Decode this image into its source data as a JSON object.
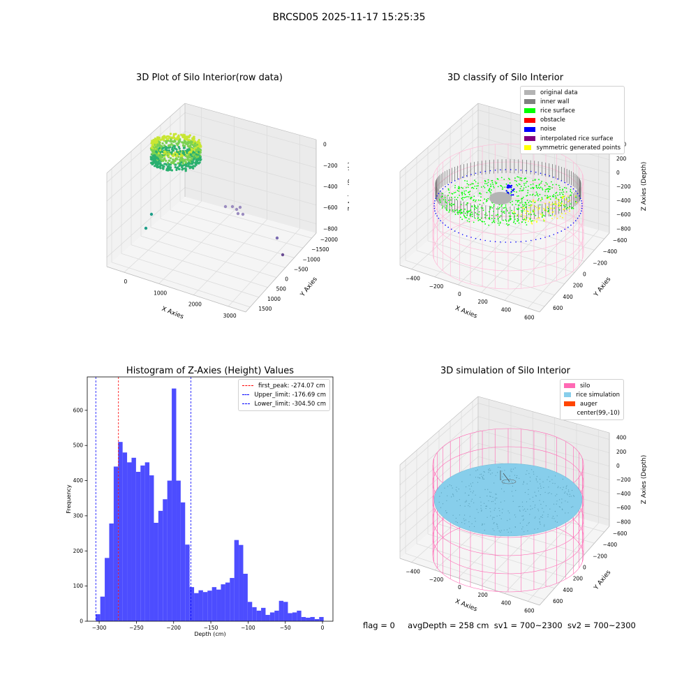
{
  "figure": {
    "suptitle": "BRCSD05 2025-11-17 15:25:35"
  },
  "status": {
    "flag": "flag = 0",
    "avg_depth": "avgDepth = 258 cm",
    "sv1": "sv1 = 700~2300",
    "sv2": "sv2 = 700~2300"
  },
  "colors": {
    "hist_bar": "#4d4dff",
    "first_peak_line": "#ff0000",
    "limit_line": "#0000ff",
    "silo_wire": "#ff69b4",
    "rice_sim": "#87ceeb"
  },
  "chart_data": [
    {
      "id": "raw",
      "type": "scatter",
      "title": "3D Plot of Silo Interior(row data)",
      "xlabel": "X Axies",
      "ylabel": "Y Axies",
      "zlabel": "Z Axies (Depth)",
      "x_ticks": [
        "0",
        "1000",
        "2000",
        "3000"
      ],
      "y_ticks": [
        "1500",
        "1000",
        "500",
        "0",
        "−500",
        "−1000",
        "−1500",
        "−2000"
      ],
      "z_ticks": [
        "0",
        "−200",
        "−400",
        "−600",
        "−800"
      ]
    },
    {
      "id": "classify",
      "type": "scatter",
      "title": "3D classify of Silo Interior",
      "xlabel": "X Axies",
      "ylabel": "Y Axies",
      "zlabel": "Z Axies (Depth)",
      "x_ticks": [
        "−400",
        "−200",
        "0",
        "200",
        "400",
        "600"
      ],
      "y_ticks": [
        "600",
        "400",
        "200",
        "0",
        "−200",
        "−400",
        "−600"
      ],
      "z_ticks": [
        "400",
        "200",
        "0",
        "−200",
        "−400",
        "−600",
        "−800"
      ],
      "legend": [
        {
          "label": "original data",
          "color": "#b4b4b4"
        },
        {
          "label": "inner wall",
          "color": "#808080"
        },
        {
          "label": "rice surface",
          "color": "#00ff00"
        },
        {
          "label": "obstacle",
          "color": "#ff0000"
        },
        {
          "label": "noise",
          "color": "#0000ff"
        },
        {
          "label": "interpolated rice surface",
          "color": "#800080"
        },
        {
          "label": "symmetric generated points",
          "color": "#ffff00"
        }
      ]
    },
    {
      "id": "hist",
      "type": "bar",
      "title": "Histogram of Z-Axies (Height) Values",
      "xlabel": "Depth (cm)",
      "ylabel": "Frequency",
      "xlim": [
        -316,
        14
      ],
      "ylim": [
        0,
        695
      ],
      "x_ticks": [
        -300,
        -250,
        -200,
        -150,
        -100,
        -50,
        0
      ],
      "x_tick_labels": [
        "−300",
        "−250",
        "−200",
        "−150",
        "−100",
        "−50",
        "0"
      ],
      "y_ticks": [
        0,
        100,
        200,
        300,
        400,
        500,
        600
      ],
      "y_tick_labels": [
        "0",
        "100",
        "200",
        "300",
        "400",
        "500",
        "600"
      ],
      "bin_edges": [
        -304.5,
        -298.5,
        -292.5,
        -286.5,
        -280.5,
        -274.5,
        -268.5,
        -262.5,
        -256.5,
        -250.5,
        -244.5,
        -238.5,
        -232.5,
        -226.5,
        -220.5,
        -214.5,
        -208.5,
        -202.5,
        -196.5,
        -190.5,
        -184.5,
        -178.5,
        -172.5,
        -166.5,
        -160.5,
        -154.5,
        -148.5,
        -142.5,
        -136.5,
        -130.5,
        -124.5,
        -118.5,
        -112.5,
        -106.5,
        -100.5,
        -94.5,
        -88.5,
        -82.5,
        -76.5,
        -70.5,
        -64.5,
        -58.5,
        -52.5,
        -46.5,
        -40.5,
        -34.5,
        -28.5,
        -22.5,
        -16.5,
        -10.5,
        -4.5,
        1.5
      ],
      "values": [
        20,
        70,
        180,
        278,
        440,
        510,
        480,
        452,
        465,
        425,
        443,
        452,
        415,
        280,
        314,
        347,
        400,
        662,
        400,
        338,
        218,
        97,
        80,
        88,
        83,
        87,
        97,
        90,
        105,
        110,
        123,
        231,
        217,
        135,
        55,
        40,
        30,
        38,
        18,
        25,
        30,
        58,
        55,
        23,
        25,
        30,
        12,
        10,
        12,
        6,
        12
      ],
      "lines": [
        {
          "label": "first_peak: -274.07 cm",
          "x": -274.07,
          "color": "#ff0000"
        },
        {
          "label": "Upper_limit: -176.69 cm",
          "x": -176.69,
          "color": "#0000ff"
        },
        {
          "label": "Lower_limit: -304.50 cm",
          "x": -304.5,
          "color": "#0000ff"
        }
      ]
    },
    {
      "id": "sim",
      "type": "scatter",
      "title": "3D simulation of Silo Interior",
      "xlabel": "X Axies",
      "ylabel": "Y Axies",
      "zlabel": "Z Axies (Depth)",
      "x_ticks": [
        "−400",
        "−200",
        "0",
        "200",
        "400",
        "600"
      ],
      "y_ticks": [
        "600",
        "400",
        "200",
        "0",
        "−200",
        "−400",
        "−600"
      ],
      "z_ticks": [
        "400",
        "200",
        "0",
        "−200",
        "−400",
        "−600",
        "−800"
      ],
      "legend": [
        {
          "label": "silo",
          "color": "#ff69b4"
        },
        {
          "label": "rice simulation",
          "color": "#87ceeb"
        },
        {
          "label": "auger",
          "color": "#ff4500"
        },
        {
          "label": "center(99,-10)",
          "color": ""
        }
      ]
    }
  ]
}
